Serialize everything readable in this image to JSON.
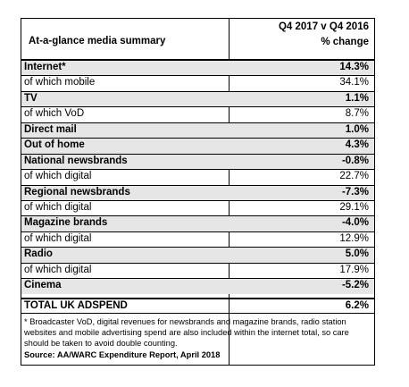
{
  "table": {
    "title": "At-a-glance media summary",
    "period_header": "Q4 2017 v Q4 2016",
    "change_header": "% change",
    "rows": [
      {
        "label": "Internet*",
        "value": "14.3%",
        "bold": true,
        "shaded": true
      },
      {
        "label": "of which mobile",
        "value": "34.1%",
        "bold": false,
        "shaded": false
      },
      {
        "label": "TV",
        "value": "1.1%",
        "bold": true,
        "shaded": true
      },
      {
        "label": "of which VoD",
        "value": "8.7%",
        "bold": false,
        "shaded": false
      },
      {
        "label": "Direct mail",
        "value": "1.0%",
        "bold": true,
        "shaded": true
      },
      {
        "label": "Out of home",
        "value": "4.3%",
        "bold": true,
        "shaded": true
      },
      {
        "label": "National newsbrands",
        "value": "-0.8%",
        "bold": true,
        "shaded": true
      },
      {
        "label": "of which digital",
        "value": "22.7%",
        "bold": false,
        "shaded": false
      },
      {
        "label": "Regional newsbrands",
        "value": "-7.3%",
        "bold": true,
        "shaded": true
      },
      {
        "label": "of which digital",
        "value": "29.1%",
        "bold": false,
        "shaded": false
      },
      {
        "label": "Magazine brands",
        "value": "-4.0%",
        "bold": true,
        "shaded": true
      },
      {
        "label": "of which digital",
        "value": "12.9%",
        "bold": false,
        "shaded": false
      },
      {
        "label": "Radio",
        "value": "5.0%",
        "bold": true,
        "shaded": true
      },
      {
        "label": "of which digital",
        "value": "17.9%",
        "bold": false,
        "shaded": false
      },
      {
        "label": "Cinema",
        "value": "-5.2%",
        "bold": true,
        "shaded": true
      }
    ],
    "total": {
      "label": "TOTAL UK ADSPEND",
      "value": "6.2%"
    }
  },
  "notes": {
    "footnote": "* Broadcaster VoD, digital revenues for newsbrands and magazine brands, radio station websites and mobile advertising spend are also included within the internet total, so care should be taken to avoid double counting.",
    "source": "Source: AA/WARC Expenditure Report, April 2018"
  }
}
